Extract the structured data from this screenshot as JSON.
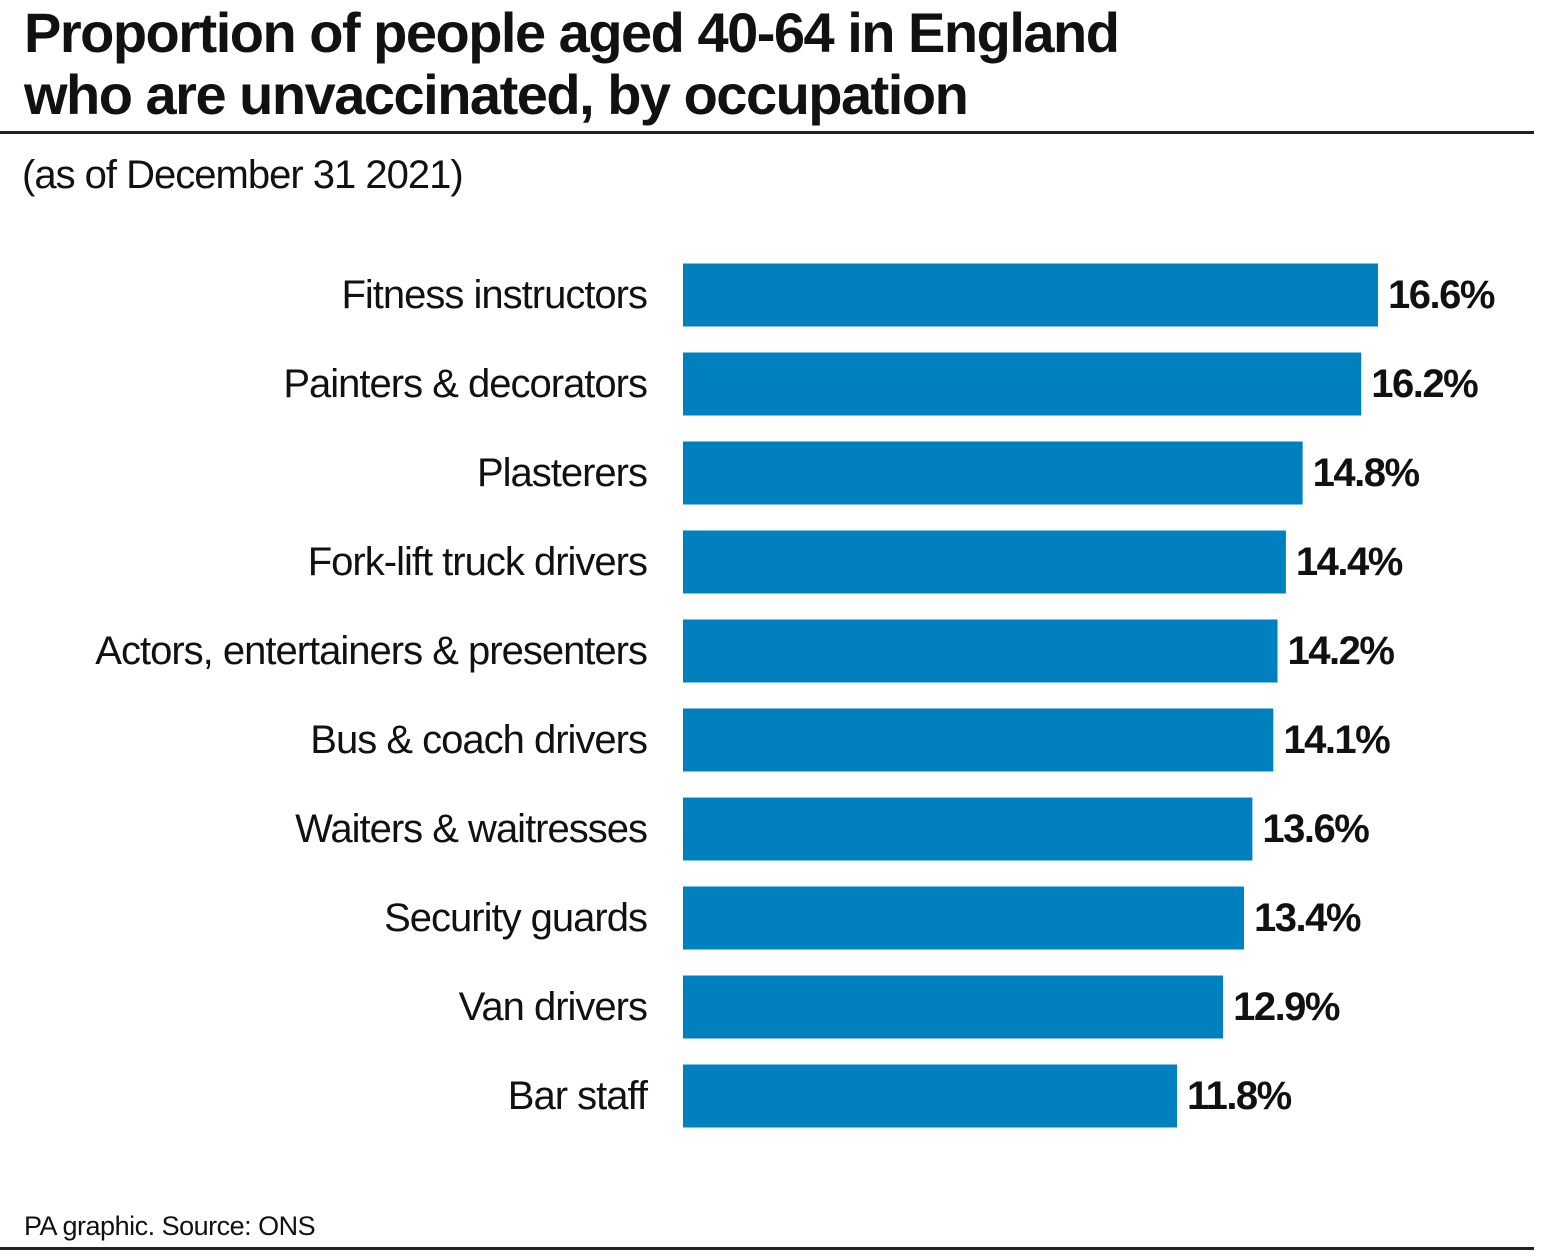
{
  "header": {
    "title_line1": "Proportion of people aged 40-64 in England",
    "title_line2": "who are unvaccinated, by occupation",
    "subtitle": "(as of December 31 2021)"
  },
  "footer": {
    "source": "PA graphic. Source: ONS"
  },
  "colors": {
    "bar": "#0080BF",
    "text": "#111111"
  },
  "chart_data": {
    "type": "bar",
    "orientation": "horizontal",
    "title": "Proportion of people aged 40-64 in England who are unvaccinated, by occupation",
    "subtitle": "(as of December 31 2021)",
    "xlabel": "",
    "ylabel": "",
    "unit": "%",
    "xlim": [
      0,
      16.6
    ],
    "grid": false,
    "legend": "none",
    "categories": [
      "Fitness instructors",
      "Painters & decorators",
      "Plasterers",
      "Fork-lift truck drivers",
      "Actors, entertainers & presenters",
      "Bus & coach drivers",
      "Waiters & waitresses",
      "Security guards",
      "Van drivers",
      "Bar staff"
    ],
    "values": [
      16.6,
      16.2,
      14.8,
      14.4,
      14.2,
      14.1,
      13.6,
      13.4,
      12.9,
      11.8
    ],
    "data_labels": [
      "16.6%",
      "16.2%",
      "14.8%",
      "14.4%",
      "14.2%",
      "14.1%",
      "13.6%",
      "13.4%",
      "12.9%",
      "11.8%"
    ]
  }
}
